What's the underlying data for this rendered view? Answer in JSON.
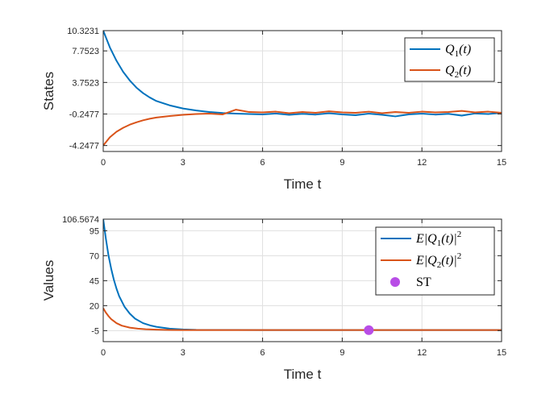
{
  "chart_data": [
    {
      "type": "line",
      "xlabel": "Time t",
      "ylabel": "States",
      "xlim": [
        0,
        15
      ],
      "ylim": [
        -5.0,
        10.3231
      ],
      "xticks": [
        0,
        3,
        6,
        9,
        12,
        15
      ],
      "xtick_labels": [
        "0",
        "3",
        "6",
        "9",
        "12",
        "15"
      ],
      "yticks": [
        -4.2477,
        -0.2477,
        3.7523,
        7.7523,
        10.3231
      ],
      "ytick_labels": [
        "-4.2477",
        "-0.2477",
        "3.7523",
        "7.7523",
        "10.3231"
      ],
      "grid": true,
      "legend_position": "top-right",
      "series": [
        {
          "name": "Q1(t)",
          "legend_main": "Q",
          "legend_sub": "1",
          "legend_tail": "(t)",
          "color": "#0072BD",
          "x": [
            0,
            0.25,
            0.5,
            0.75,
            1,
            1.25,
            1.5,
            1.75,
            2,
            2.5,
            3,
            3.5,
            4,
            4.5,
            5,
            5.5,
            6,
            6.5,
            7,
            7.5,
            8,
            8.5,
            9,
            9.5,
            10,
            10.5,
            11,
            11.5,
            12,
            12.5,
            13,
            13.5,
            14,
            14.5,
            15
          ],
          "y": [
            10.3231,
            8.2,
            6.5,
            5.1,
            4.0,
            3.1,
            2.4,
            1.85,
            1.4,
            0.85,
            0.45,
            0.2,
            0.0,
            -0.12,
            -0.2,
            -0.25,
            -0.3,
            -0.18,
            -0.35,
            -0.22,
            -0.32,
            -0.15,
            -0.3,
            -0.4,
            -0.2,
            -0.35,
            -0.55,
            -0.3,
            -0.2,
            -0.32,
            -0.22,
            -0.45,
            -0.18,
            -0.25,
            -0.1
          ]
        },
        {
          "name": "Q2(t)",
          "legend_main": "Q",
          "legend_sub": "2",
          "legend_tail": "(t)",
          "color": "#D95319",
          "x": [
            0,
            0.25,
            0.5,
            0.75,
            1,
            1.25,
            1.5,
            1.75,
            2,
            2.5,
            3,
            3.5,
            4,
            4.5,
            5,
            5.5,
            6,
            6.5,
            7,
            7.5,
            8,
            8.5,
            9,
            9.5,
            10,
            10.5,
            11,
            11.5,
            12,
            12.5,
            13,
            13.5,
            14,
            14.5,
            15
          ],
          "y": [
            -4.2477,
            -3.2,
            -2.5,
            -2.0,
            -1.6,
            -1.3,
            -1.05,
            -0.85,
            -0.7,
            -0.5,
            -0.35,
            -0.25,
            -0.2,
            -0.3,
            0.3,
            0.0,
            -0.05,
            0.05,
            -0.15,
            0.0,
            -0.1,
            0.1,
            -0.05,
            -0.1,
            0.05,
            -0.15,
            0.0,
            -0.1,
            0.05,
            -0.05,
            0.0,
            0.15,
            -0.05,
            0.05,
            -0.1
          ]
        }
      ]
    },
    {
      "type": "line",
      "xlabel": "Time t",
      "ylabel": "Values",
      "xlim": [
        0,
        15
      ],
      "ylim": [
        -16,
        106.5674
      ],
      "xticks": [
        0,
        3,
        6,
        9,
        12,
        15
      ],
      "xtick_labels": [
        "0",
        "3",
        "6",
        "9",
        "12",
        "15"
      ],
      "yticks": [
        -5,
        20,
        45,
        70,
        95,
        106.5674
      ],
      "ytick_labels": [
        "-5",
        "20",
        "45",
        "70",
        "95",
        "106.5674"
      ],
      "grid": true,
      "legend_position": "top-right",
      "series": [
        {
          "name": "E|Q1(t)|^2",
          "legend_main": "E|Q",
          "legend_sub": "1",
          "legend_tail": "(t)|",
          "legend_sup": "2",
          "color": "#0072BD",
          "x": [
            0,
            0.1,
            0.2,
            0.3,
            0.4,
            0.5,
            0.6,
            0.8,
            1.0,
            1.2,
            1.5,
            1.8,
            2.0,
            2.5,
            3.0,
            3.5,
            4.0,
            5.0,
            6.0,
            8.0,
            10.0,
            12.0,
            15.0
          ],
          "y": [
            106.5674,
            87.0,
            70.0,
            57.0,
            46.0,
            37.0,
            29.5,
            19.0,
            12.0,
            7.0,
            2.5,
            0.0,
            -1.2,
            -3.0,
            -3.8,
            -4.2,
            -4.3,
            -4.35,
            -4.4,
            -4.4,
            -4.4,
            -4.4,
            -4.4
          ]
        },
        {
          "name": "E|Q2(t)|^2",
          "legend_main": "E|Q",
          "legend_sub": "2",
          "legend_tail": "(t)|",
          "legend_sup": "2",
          "color": "#D95319",
          "x": [
            0,
            0.1,
            0.2,
            0.3,
            0.5,
            0.7,
            1.0,
            1.3,
            1.6,
            2.0,
            2.5,
            3.0,
            4.0,
            6.0,
            8.0,
            10.0,
            12.0,
            15.0
          ],
          "y": [
            17.5,
            13.0,
            9.5,
            6.5,
            2.5,
            0.0,
            -2.0,
            -3.0,
            -3.6,
            -4.0,
            -4.3,
            -4.4,
            -4.45,
            -4.45,
            -4.45,
            -4.45,
            -4.45,
            -4.45
          ]
        },
        {
          "name": "ST",
          "legend_main": "ST",
          "color": "#B84DE6",
          "marker": "circle",
          "x": [
            10
          ],
          "y": [
            -4.5
          ]
        }
      ]
    }
  ]
}
